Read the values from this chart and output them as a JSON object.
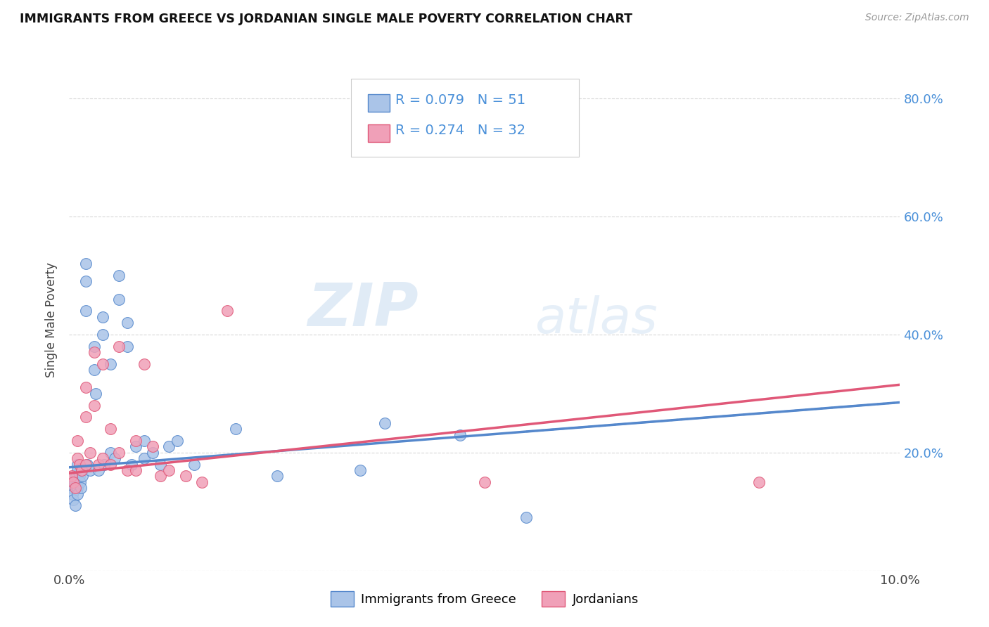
{
  "title": "IMMIGRANTS FROM GREECE VS JORDANIAN SINGLE MALE POVERTY CORRELATION CHART",
  "source": "Source: ZipAtlas.com",
  "xlabel": "",
  "ylabel": "Single Male Poverty",
  "xlim": [
    0.0,
    0.1
  ],
  "ylim": [
    0.0,
    0.85
  ],
  "yticks": [
    0.0,
    0.2,
    0.4,
    0.6,
    0.8
  ],
  "yticklabels": [
    "",
    "20.0%",
    "40.0%",
    "60.0%",
    "80.0%"
  ],
  "xticks": [
    0.0,
    0.02,
    0.04,
    0.06,
    0.08,
    0.1
  ],
  "xticklabels": [
    "0.0%",
    "",
    "",
    "",
    "",
    "10.0%"
  ],
  "legend1_r": "0.079",
  "legend1_n": "51",
  "legend2_r": "0.274",
  "legend2_n": "32",
  "color_greece": "#aac4e8",
  "color_jordan": "#f0a0b8",
  "color_line_greece": "#5588cc",
  "color_line_jordan": "#e05878",
  "color_text_blue": "#4a90d9",
  "background": "#ffffff",
  "grid_color": "#d8d8d8",
  "watermark_zip": "ZIP",
  "watermark_atlas": "atlas",
  "greece_x": [
    0.0003,
    0.0004,
    0.0005,
    0.0006,
    0.0007,
    0.0008,
    0.0009,
    0.001,
    0.001,
    0.001,
    0.001,
    0.001,
    0.0012,
    0.0013,
    0.0014,
    0.0015,
    0.0016,
    0.002,
    0.002,
    0.002,
    0.0022,
    0.0025,
    0.003,
    0.003,
    0.0032,
    0.0035,
    0.004,
    0.004,
    0.0042,
    0.005,
    0.005,
    0.0055,
    0.006,
    0.006,
    0.007,
    0.007,
    0.0075,
    0.008,
    0.009,
    0.009,
    0.01,
    0.011,
    0.012,
    0.013,
    0.015,
    0.02,
    0.025,
    0.035,
    0.038,
    0.047,
    0.055
  ],
  "greece_y": [
    0.14,
    0.13,
    0.12,
    0.15,
    0.11,
    0.16,
    0.14,
    0.18,
    0.17,
    0.15,
    0.14,
    0.13,
    0.16,
    0.15,
    0.14,
    0.17,
    0.16,
    0.52,
    0.49,
    0.44,
    0.18,
    0.17,
    0.38,
    0.34,
    0.3,
    0.17,
    0.43,
    0.4,
    0.18,
    0.35,
    0.2,
    0.19,
    0.5,
    0.46,
    0.42,
    0.38,
    0.18,
    0.21,
    0.22,
    0.19,
    0.2,
    0.18,
    0.21,
    0.22,
    0.18,
    0.24,
    0.16,
    0.17,
    0.25,
    0.23,
    0.09
  ],
  "jordan_x": [
    0.0003,
    0.0005,
    0.0007,
    0.001,
    0.001,
    0.0012,
    0.0015,
    0.002,
    0.002,
    0.002,
    0.0025,
    0.003,
    0.003,
    0.0035,
    0.004,
    0.004,
    0.005,
    0.005,
    0.006,
    0.006,
    0.007,
    0.008,
    0.008,
    0.009,
    0.01,
    0.011,
    0.012,
    0.014,
    0.016,
    0.019,
    0.05,
    0.083
  ],
  "jordan_y": [
    0.16,
    0.15,
    0.14,
    0.22,
    0.19,
    0.18,
    0.17,
    0.31,
    0.26,
    0.18,
    0.2,
    0.37,
    0.28,
    0.18,
    0.35,
    0.19,
    0.24,
    0.18,
    0.38,
    0.2,
    0.17,
    0.22,
    0.17,
    0.35,
    0.21,
    0.16,
    0.17,
    0.16,
    0.15,
    0.44,
    0.15,
    0.15
  ],
  "greece_line_x": [
    0.0,
    0.1
  ],
  "greece_line_y": [
    0.175,
    0.285
  ],
  "jordan_line_x": [
    0.0,
    0.1
  ],
  "jordan_line_y": [
    0.165,
    0.315
  ]
}
